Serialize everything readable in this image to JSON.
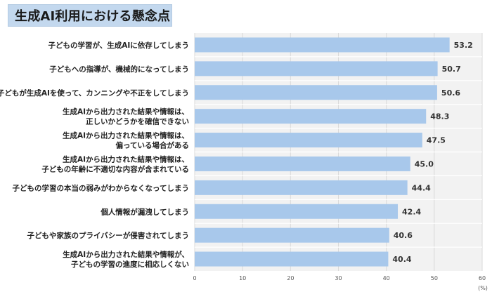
{
  "title": "生成AI利用における懸念点",
  "chart_data": {
    "type": "bar",
    "orientation": "horizontal",
    "title": "生成AI利用における懸念点",
    "unit_label": "(%)",
    "xlim": [
      0,
      60
    ],
    "ticks": [
      0,
      10,
      20,
      30,
      40,
      50,
      60
    ],
    "grid": true,
    "bar_color": "#a8c8eb",
    "categories": [
      [
        "子どもの学習が、生成AIに依存してしまう"
      ],
      [
        "子どもへの指導が、機械的になってしまう"
      ],
      [
        "子どもが生成AIを使って、カンニングや不正をしてしまう"
      ],
      [
        "生成AIから出力された結果や情報は、",
        "正しいかどうかを確信できない"
      ],
      [
        "生成AIから出力された結果や情報は、",
        "偏っている場合がある"
      ],
      [
        "生成AIから出力された結果や情報は、",
        "子どもの年齢に不適切な内容が含まれている"
      ],
      [
        "子どもの学習の本当の弱みがわからなくなってしまう"
      ],
      [
        "個人情報が漏洩してしまう"
      ],
      [
        "子どもや家族のプライバシーが侵害されてしまう"
      ],
      [
        "生成AIから出力された結果や情報が、",
        "子どもの学習の進度に相応しくない"
      ]
    ],
    "values": [
      53.2,
      50.7,
      50.6,
      48.3,
      47.5,
      45.0,
      44.4,
      42.4,
      40.6,
      40.4
    ]
  }
}
